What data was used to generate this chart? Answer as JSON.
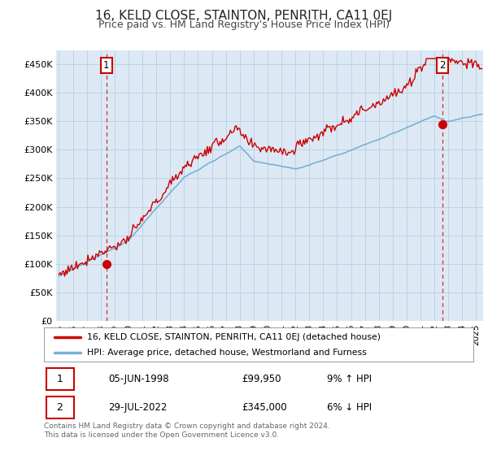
{
  "title": "16, KELD CLOSE, STAINTON, PENRITH, CA11 0EJ",
  "subtitle": "Price paid vs. HM Land Registry's House Price Index (HPI)",
  "ylim": [
    0,
    475000
  ],
  "yticks": [
    0,
    50000,
    100000,
    150000,
    200000,
    250000,
    300000,
    350000,
    400000,
    450000
  ],
  "ytick_labels": [
    "£0",
    "£50K",
    "£100K",
    "£150K",
    "£200K",
    "£250K",
    "£300K",
    "£350K",
    "£400K",
    "£450K"
  ],
  "sale1_year": 1998.42,
  "sale1_price": 99950,
  "sale2_year": 2022.57,
  "sale2_price": 345000,
  "sale_color": "#cc0000",
  "hpi_color": "#7ab0d4",
  "annotation_edge_color": "#cc0000",
  "dashed_line_color": "#cc0000",
  "background_color": "#ffffff",
  "chart_bg_color": "#dce9f5",
  "grid_color": "#b8cfe0",
  "legend_label_sale": "16, KELD CLOSE, STAINTON, PENRITH, CA11 0EJ (detached house)",
  "legend_label_hpi": "HPI: Average price, detached house, Westmorland and Furness",
  "footer": "Contains HM Land Registry data © Crown copyright and database right 2024.\nThis data is licensed under the Open Government Licence v3.0.",
  "xstart_year": 1994.8,
  "xend_year": 2025.5,
  "title_fontsize": 11,
  "subtitle_fontsize": 9
}
